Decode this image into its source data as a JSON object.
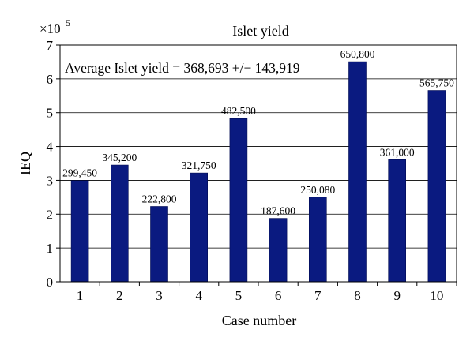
{
  "chart_data": {
    "type": "bar",
    "title": "Islet yield",
    "xlabel": "Case number",
    "ylabel": "IEQ",
    "y_multiplier": "×10",
    "y_multiplier_exp": "5",
    "ylim": [
      0,
      7
    ],
    "yticks": [
      "0",
      "1",
      "2",
      "3",
      "4",
      "5",
      "6",
      "7"
    ],
    "grid": true,
    "categories": [
      "1",
      "2",
      "3",
      "4",
      "5",
      "6",
      "7",
      "8",
      "9",
      "10"
    ],
    "values": [
      299450,
      345200,
      222800,
      321750,
      482500,
      187600,
      250080,
      650800,
      361000,
      565750
    ],
    "data_labels": [
      "299,450",
      "345,200",
      "222,800",
      "321,750",
      "482,500",
      "187,600",
      "250,080",
      "650,800",
      "361,000",
      "565,750"
    ],
    "annotation": "Average Islet yield = 368,693 +/− 143,919",
    "bar_color": "#0a1a80"
  }
}
